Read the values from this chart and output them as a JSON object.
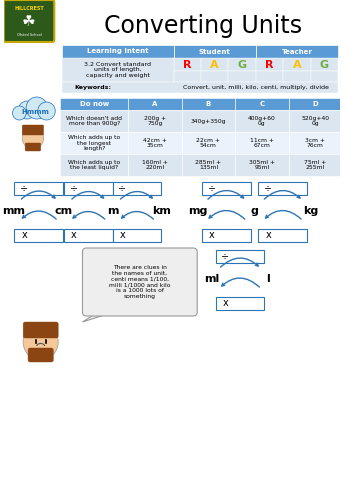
{
  "title": "Converting Units",
  "bg_color": "#ffffff",
  "header_blue": "#5b9bd5",
  "light_blue": "#dce6f1",
  "lighter_blue": "#eaf2fb",
  "rag_colors": [
    "#ff0000",
    "#ffc000",
    "#70ad47",
    "#ff0000",
    "#ffc000",
    "#70ad47"
  ],
  "rag_labels": [
    "R",
    "A",
    "G",
    "R",
    "A",
    "G"
  ],
  "learning_intent": "3.2 Convert standard\nunits of length,\ncapacity and weight",
  "keywords": "Convert, unit, milli, kilo, centi, multiply, divide",
  "do_now_header": [
    "Do now",
    "A",
    "B",
    "C",
    "D"
  ],
  "do_now_rows": [
    [
      "Which doesn't add\nmore than 900g?",
      "200g +\n750g",
      "340g+350g",
      "400g+60\n0g",
      "520g+40\n0g"
    ],
    [
      "Which adds up to\nthe longest\nlength?",
      "42cm +\n35cm",
      "22cm +\n54cm",
      "11cm +\n67cm",
      "3cm +\n76cm"
    ],
    [
      "Which adds up to\nthe least liquid?",
      "160ml +\n220ml",
      "285ml +\n135ml",
      "305ml +\n95ml",
      "75ml +\n255ml"
    ]
  ],
  "units_left": [
    "mm",
    "cm",
    "m",
    "km"
  ],
  "units_right": [
    "mg",
    "g",
    "kg"
  ],
  "units_liquid": [
    "ml",
    "l"
  ],
  "arrow_color": "#2e74b5",
  "hint_text": "There are clues in\nthe names of unit,\ncenti means 1/100,\nmilli 1/1000 and kilo\nis a 1000 lots of\nsomething",
  "shield_green": "#2d5a1b",
  "shield_gold": "#c8a800",
  "skin_color": "#f5c89a",
  "hair_color": "#8B4513",
  "cloud_color": "#d0e8f0",
  "hmmm_color": "#1a6ebf"
}
